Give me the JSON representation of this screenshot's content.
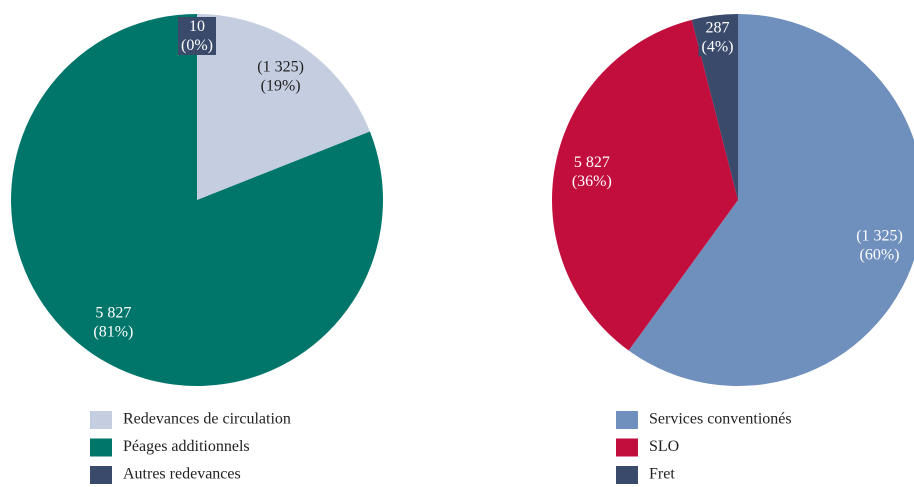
{
  "chart_data": [
    {
      "type": "pie",
      "categories": [
        "Redevances de circulation",
        "Péages additionnels",
        "Autres redevances"
      ],
      "values": [
        19,
        81,
        0
      ],
      "value_labels": [
        "(19%)",
        "(81%)",
        "(0%)"
      ],
      "amounts": [
        1325,
        5827,
        10
      ],
      "amount_labels": [
        "(1 325)",
        "5 827",
        "10"
      ],
      "colors": [
        "#c5cee0",
        "#00766b",
        "#3a4a6b"
      ]
    },
    {
      "type": "pie",
      "categories": [
        "Services conventionés",
        "SLO",
        "Fret"
      ],
      "values": [
        60,
        36,
        4
      ],
      "value_labels": [
        "(60%)",
        "(36%)",
        "(4%)"
      ],
      "amounts": [
        1325,
        5827,
        287
      ],
      "amount_labels": [
        "(1 325)",
        "5 827",
        "287"
      ],
      "colors": [
        "#6f8fbd",
        "#c20e3d",
        "#3a4a6b"
      ]
    }
  ]
}
